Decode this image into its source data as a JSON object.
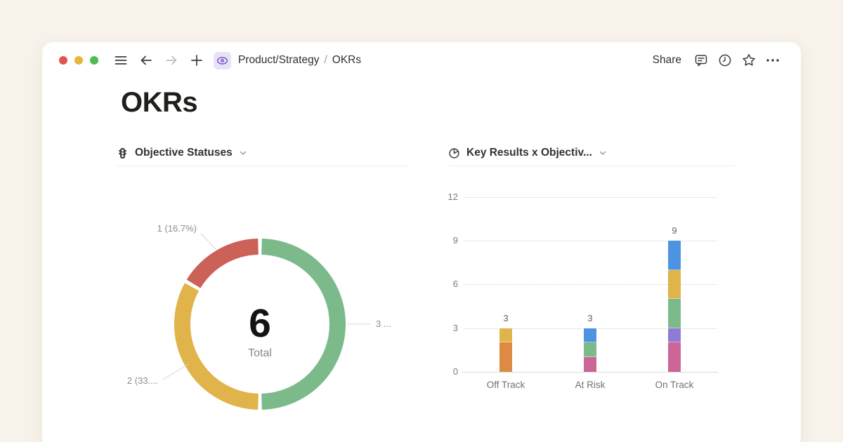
{
  "titlebar": {
    "breadcrumb": {
      "root": "Product/Strategy",
      "separator": "/",
      "current": "OKRs"
    },
    "share_label": "Share"
  },
  "page": {
    "title": "OKRs"
  },
  "left_chart_header": {
    "title": "Objective Statuses"
  },
  "right_chart_header": {
    "title": "Key Results x Objectiv..."
  },
  "icons": {
    "hamburger-icon": "≡",
    "back-icon": "←",
    "forward-icon": "→",
    "plus-icon": "+",
    "eye-icon": "👁",
    "comment-icon": "💬",
    "history-icon": "🕐",
    "star-icon": "☆",
    "more-icon": "⋯",
    "traffic-light-icon": "🚦",
    "pie-chart-icon": "◔",
    "chevron-down-icon": "⌄"
  },
  "colors": {
    "page_background": "#f8f3ea",
    "card_background": "#ffffff",
    "window_dot_red": "#df564b",
    "window_dot_yellow": "#e7b43d",
    "window_dot_green": "#4fbc4f",
    "accent_purple": "#7b5cc4",
    "status_green": "#7cba8b",
    "status_yellow": "#e0b44a",
    "status_red": "#cb6157",
    "series_orange": "#dd8b43",
    "series_pink": "#cb6598",
    "series_purple": "#9179d6",
    "series_blue": "#4e93e2"
  },
  "chart_data": [
    {
      "type": "donut",
      "title": "Objective Statuses",
      "total": 6,
      "center_value": "6",
      "center_label": "Total",
      "start": "top",
      "direction": "clockwise",
      "segments": [
        {
          "value": 3,
          "percent": "50%",
          "color": "#7cba8b",
          "callout": "3 ..."
        },
        {
          "value": 2,
          "percent": "33.3%",
          "color": "#e0b44a",
          "callout": "2 (33...."
        },
        {
          "value": 1,
          "percent": "16.7%",
          "color": "#cb6157",
          "callout": "1 (16.7%)"
        }
      ]
    },
    {
      "type": "stacked_bar",
      "title": "Key Results x Objectiv...",
      "categories": [
        "Off Track",
        "At Risk",
        "On Track"
      ],
      "y_ticks": [
        0,
        3,
        6,
        9,
        12
      ],
      "ylim": [
        0,
        12
      ],
      "totals": [
        3,
        3,
        9
      ],
      "grid": "dotted",
      "stacks": [
        [
          {
            "value": 2,
            "color": "#dd8b43"
          },
          {
            "value": 1,
            "color": "#e0b44a"
          }
        ],
        [
          {
            "value": 1,
            "color": "#cb6598"
          },
          {
            "value": 1,
            "color": "#7cba8b"
          },
          {
            "value": 1,
            "color": "#4e93e2"
          }
        ],
        [
          {
            "value": 2,
            "color": "#cb6598"
          },
          {
            "value": 1,
            "color": "#9179d6"
          },
          {
            "value": 2,
            "color": "#7cba8b"
          },
          {
            "value": 2,
            "color": "#e0b44a"
          },
          {
            "value": 2,
            "color": "#4e93e2"
          }
        ]
      ]
    }
  ]
}
